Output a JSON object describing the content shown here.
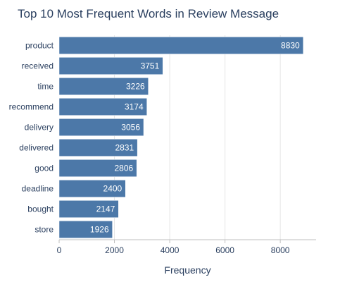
{
  "chart_data": {
    "type": "bar",
    "orientation": "horizontal",
    "title": "Top 10 Most Frequent Words in Review Message",
    "xlabel": "Frequency",
    "ylabel": "",
    "categories": [
      "product",
      "received",
      "time",
      "recommend",
      "delivery",
      "delivered",
      "good",
      "deadline",
      "bought",
      "store"
    ],
    "values": [
      8830,
      3751,
      3226,
      3174,
      3056,
      2831,
      2806,
      2400,
      2147,
      1926
    ],
    "xlim": [
      0,
      9295
    ],
    "xticks": [
      0,
      2000,
      4000,
      6000,
      8000
    ],
    "xtick_labels": [
      "0",
      "2000",
      "4000",
      "6000",
      "8000"
    ],
    "grid": "vertical",
    "data_labels": "inside-end",
    "colors": {
      "bar": "#4c78a8",
      "bar_edge": "#ffffff",
      "grid": "#e5e5e5",
      "axis": "#bfbfbf",
      "text": "#2a3f5f",
      "bar_label": "#ffffff",
      "background": "#ffffff"
    }
  }
}
